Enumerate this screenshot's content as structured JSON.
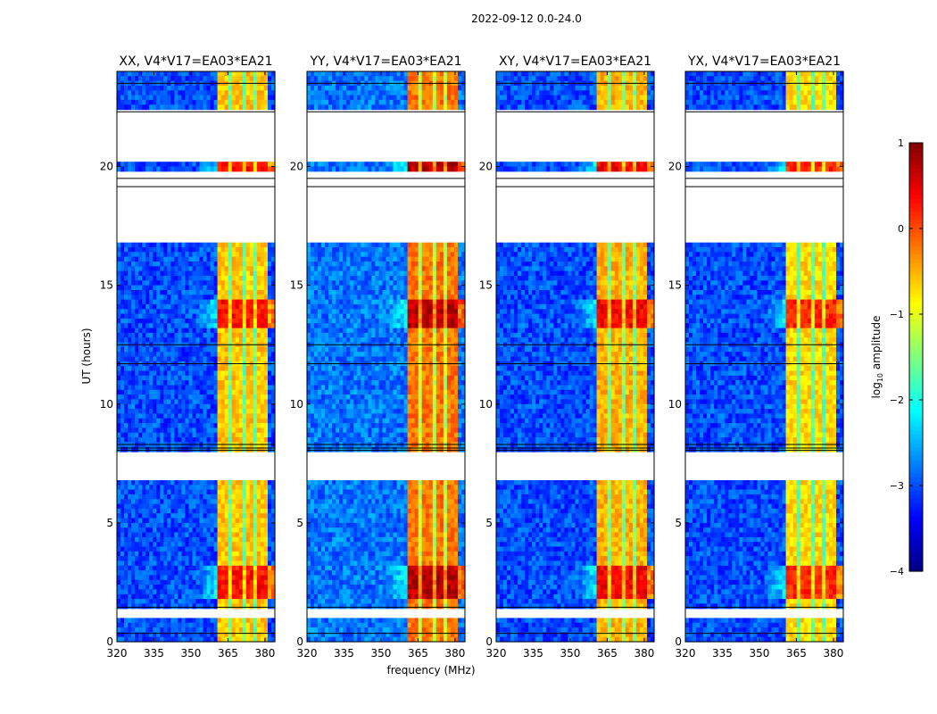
{
  "figure": {
    "suptitle": "2022-09-12 0.0-24.0"
  },
  "chart_data": {
    "type": "heatmap",
    "title": "2022-09-12 0.0-24.0",
    "xlabel": "frequency (MHz)",
    "ylabel": "UT (hours)",
    "xlim": [
      320,
      384
    ],
    "ylim": [
      0,
      24
    ],
    "xticks": [
      320,
      335,
      350,
      365,
      380
    ],
    "yticks": [
      0,
      5,
      10,
      15,
      20
    ],
    "grid": false,
    "colormap": "jet",
    "colorbar": {
      "label": "log10 amplitude",
      "label_main": "log",
      "label_sub": "10",
      "label_rest": " amplitude",
      "range": [
        -4,
        1
      ],
      "ticks": [
        -4,
        -3,
        -2,
        -1,
        0,
        1
      ],
      "tick_labels": [
        "−4",
        "−3",
        "−2",
        "−1",
        "0",
        "1"
      ],
      "placement": "right"
    },
    "panels": [
      {
        "title": "XX, V4*V17=EA03*EA21",
        "polarization": "XX",
        "background_level": -3.0,
        "rfi_level": -0.6,
        "peak_level": 0.3
      },
      {
        "title": "YY, V4*V17=EA03*EA21",
        "polarization": "YY",
        "background_level": -2.8,
        "rfi_level": -0.2,
        "peak_level": 0.7
      },
      {
        "title": "XY, V4*V17=EA03*EA21",
        "polarization": "XY",
        "background_level": -3.0,
        "rfi_level": -0.5,
        "peak_level": 0.4
      },
      {
        "title": "YX, V4*V17=EA03*EA21",
        "polarization": "YX",
        "background_level": -3.0,
        "rfi_level": -0.7,
        "peak_level": 0.2
      }
    ],
    "rfi_band_mhz": [
      361,
      381
    ],
    "rfi_channel_gaps_mhz": [
      366,
      371,
      376
    ],
    "flagged_blank_ut_ranges": [
      [
        0.9,
        1.4
      ],
      [
        6.7,
        7.9
      ],
      [
        16.8,
        19.0
      ],
      [
        19.1,
        19.4
      ],
      [
        19.8,
        19.3
      ],
      [
        20.3,
        20.9
      ],
      [
        21.1,
        22.3
      ]
    ],
    "bright_ut_ranges": [
      [
        1.8,
        3.2
      ],
      [
        13.2,
        14.3
      ],
      [
        19.8,
        20.2
      ]
    ]
  }
}
